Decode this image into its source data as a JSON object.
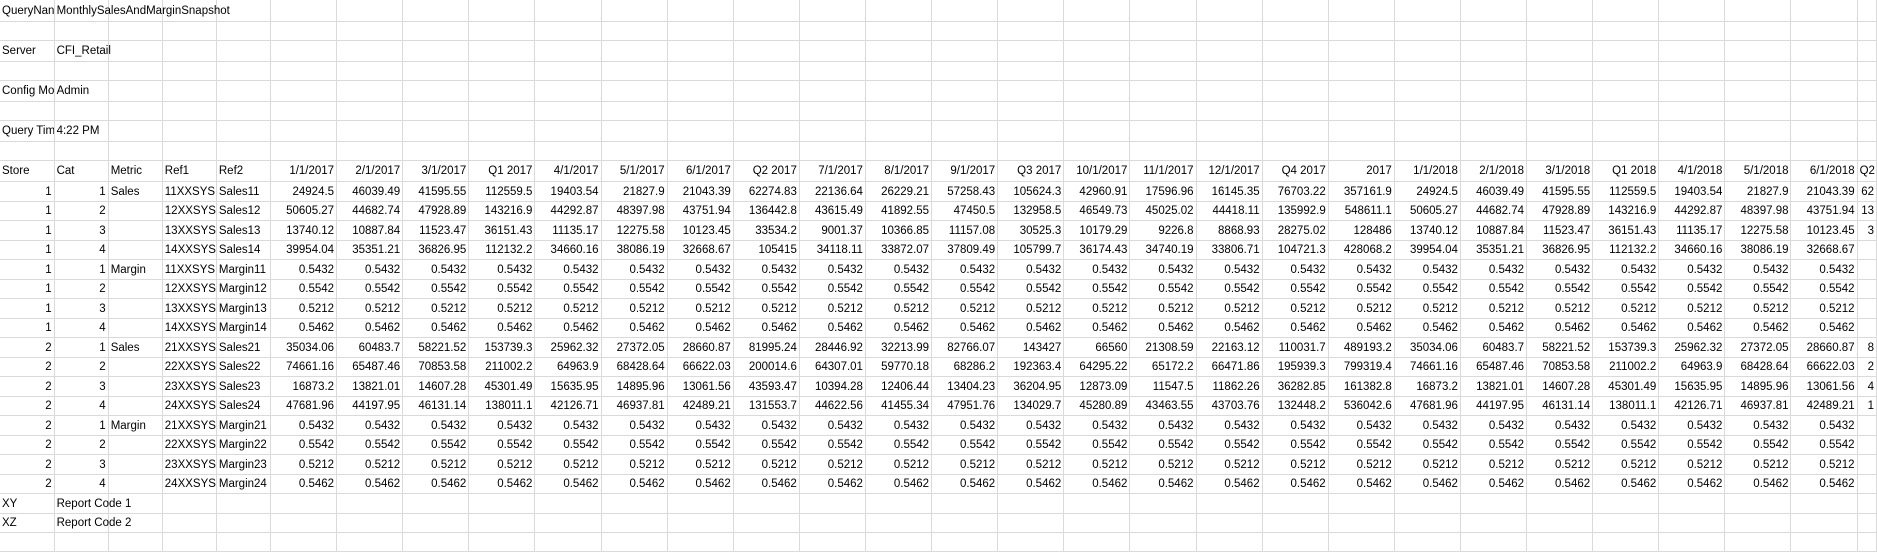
{
  "header_params": [
    {
      "key": "QueryNan",
      "value": "MonthlySalesAndMarginSnapshot"
    },
    {
      "key": "Server",
      "value": "CFI_Retail"
    },
    {
      "key": "Config Mo",
      "value": "Admin"
    },
    {
      "key": "Query Tim",
      "value": "4:22 PM"
    }
  ],
  "table": {
    "columns": [
      "Store",
      "Cat",
      "Metric",
      "Ref1",
      "Ref2",
      "1/1/2017",
      "2/1/2017",
      "3/1/2017",
      "Q1 2017",
      "4/1/2017",
      "5/1/2017",
      "6/1/2017",
      "Q2 2017",
      "7/1/2017",
      "8/1/2017",
      "9/1/2017",
      "Q3 2017",
      "10/1/2017",
      "11/1/2017",
      "12/1/2017",
      "Q4 2017",
      "2017",
      "1/1/2018",
      "2/1/2018",
      "3/1/2018",
      "Q1 2018",
      "4/1/2018",
      "5/1/2018",
      "6/1/2018",
      "Q2"
    ],
    "rows": [
      [
        "1",
        "1",
        "Sales",
        "11XXSYS",
        "Sales11",
        "24924.5",
        "46039.49",
        "41595.55",
        "112559.5",
        "19403.54",
        "21827.9",
        "21043.39",
        "62274.83",
        "22136.64",
        "26229.21",
        "57258.43",
        "105624.3",
        "42960.91",
        "17596.96",
        "16145.35",
        "76703.22",
        "357161.9",
        "24924.5",
        "46039.49",
        "41595.55",
        "112559.5",
        "19403.54",
        "21827.9",
        "21043.39",
        "62"
      ],
      [
        "1",
        "2",
        "",
        "12XXSYS",
        "Sales12",
        "50605.27",
        "44682.74",
        "47928.89",
        "143216.9",
        "44292.87",
        "48397.98",
        "43751.94",
        "136442.8",
        "43615.49",
        "41892.55",
        "47450.5",
        "132958.5",
        "46549.73",
        "45025.02",
        "44418.11",
        "135992.9",
        "548611.1",
        "50605.27",
        "44682.74",
        "47928.89",
        "143216.9",
        "44292.87",
        "48397.98",
        "43751.94",
        "13"
      ],
      [
        "1",
        "3",
        "",
        "13XXSYS",
        "Sales13",
        "13740.12",
        "10887.84",
        "11523.47",
        "36151.43",
        "11135.17",
        "12275.58",
        "10123.45",
        "33534.2",
        "9001.37",
        "10366.85",
        "11157.08",
        "30525.3",
        "10179.29",
        "9226.8",
        "8868.93",
        "28275.02",
        "128486",
        "13740.12",
        "10887.84",
        "11523.47",
        "36151.43",
        "11135.17",
        "12275.58",
        "10123.45",
        "3"
      ],
      [
        "1",
        "4",
        "",
        "14XXSYS",
        "Sales14",
        "39954.04",
        "35351.21",
        "36826.95",
        "112132.2",
        "34660.16",
        "38086.19",
        "32668.67",
        "105415",
        "34118.11",
        "33872.07",
        "37809.49",
        "105799.7",
        "36174.43",
        "34740.19",
        "33806.71",
        "104721.3",
        "428068.2",
        "39954.04",
        "35351.21",
        "36826.95",
        "112132.2",
        "34660.16",
        "38086.19",
        "32668.67",
        ""
      ],
      [
        "1",
        "1",
        "Margin",
        "11XXSYS",
        "Margin11",
        "0.5432",
        "0.5432",
        "0.5432",
        "0.5432",
        "0.5432",
        "0.5432",
        "0.5432",
        "0.5432",
        "0.5432",
        "0.5432",
        "0.5432",
        "0.5432",
        "0.5432",
        "0.5432",
        "0.5432",
        "0.5432",
        "0.5432",
        "0.5432",
        "0.5432",
        "0.5432",
        "0.5432",
        "0.5432",
        "0.5432",
        "0.5432",
        ""
      ],
      [
        "1",
        "2",
        "",
        "12XXSYS",
        "Margin12",
        "0.5542",
        "0.5542",
        "0.5542",
        "0.5542",
        "0.5542",
        "0.5542",
        "0.5542",
        "0.5542",
        "0.5542",
        "0.5542",
        "0.5542",
        "0.5542",
        "0.5542",
        "0.5542",
        "0.5542",
        "0.5542",
        "0.5542",
        "0.5542",
        "0.5542",
        "0.5542",
        "0.5542",
        "0.5542",
        "0.5542",
        "0.5542",
        ""
      ],
      [
        "1",
        "3",
        "",
        "13XXSYS",
        "Margin13",
        "0.5212",
        "0.5212",
        "0.5212",
        "0.5212",
        "0.5212",
        "0.5212",
        "0.5212",
        "0.5212",
        "0.5212",
        "0.5212",
        "0.5212",
        "0.5212",
        "0.5212",
        "0.5212",
        "0.5212",
        "0.5212",
        "0.5212",
        "0.5212",
        "0.5212",
        "0.5212",
        "0.5212",
        "0.5212",
        "0.5212",
        "0.5212",
        ""
      ],
      [
        "1",
        "4",
        "",
        "14XXSYS",
        "Margin14",
        "0.5462",
        "0.5462",
        "0.5462",
        "0.5462",
        "0.5462",
        "0.5462",
        "0.5462",
        "0.5462",
        "0.5462",
        "0.5462",
        "0.5462",
        "0.5462",
        "0.5462",
        "0.5462",
        "0.5462",
        "0.5462",
        "0.5462",
        "0.5462",
        "0.5462",
        "0.5462",
        "0.5462",
        "0.5462",
        "0.5462",
        "0.5462",
        ""
      ],
      [
        "2",
        "1",
        "Sales",
        "21XXSYS",
        "Sales21",
        "35034.06",
        "60483.7",
        "58221.52",
        "153739.3",
        "25962.32",
        "27372.05",
        "28660.87",
        "81995.24",
        "28446.92",
        "32213.99",
        "82766.07",
        "143427",
        "66560",
        "21308.59",
        "22163.12",
        "110031.7",
        "489193.2",
        "35034.06",
        "60483.7",
        "58221.52",
        "153739.3",
        "25962.32",
        "27372.05",
        "28660.87",
        "8"
      ],
      [
        "2",
        "2",
        "",
        "22XXSYS",
        "Sales22",
        "74661.16",
        "65487.46",
        "70853.58",
        "211002.2",
        "64963.9",
        "68428.64",
        "66622.03",
        "200014.6",
        "64307.01",
        "59770.18",
        "68286.2",
        "192363.4",
        "64295.22",
        "65172.2",
        "66471.86",
        "195939.3",
        "799319.4",
        "74661.16",
        "65487.46",
        "70853.58",
        "211002.2",
        "64963.9",
        "68428.64",
        "66622.03",
        "2"
      ],
      [
        "2",
        "3",
        "",
        "23XXSYS",
        "Sales23",
        "16873.2",
        "13821.01",
        "14607.28",
        "45301.49",
        "15635.95",
        "14895.96",
        "13061.56",
        "43593.47",
        "10394.28",
        "12406.44",
        "13404.23",
        "36204.95",
        "12873.09",
        "11547.5",
        "11862.26",
        "36282.85",
        "161382.8",
        "16873.2",
        "13821.01",
        "14607.28",
        "45301.49",
        "15635.95",
        "14895.96",
        "13061.56",
        "4"
      ],
      [
        "2",
        "4",
        "",
        "24XXSYS",
        "Sales24",
        "47681.96",
        "44197.95",
        "46131.14",
        "138011.1",
        "42126.71",
        "46937.81",
        "42489.21",
        "131553.7",
        "44622.56",
        "41455.34",
        "47951.76",
        "134029.7",
        "45280.89",
        "43463.55",
        "43703.76",
        "132448.2",
        "536042.6",
        "47681.96",
        "44197.95",
        "46131.14",
        "138011.1",
        "42126.71",
        "46937.81",
        "42489.21",
        "1"
      ],
      [
        "2",
        "1",
        "Margin",
        "21XXSYS",
        "Margin21",
        "0.5432",
        "0.5432",
        "0.5432",
        "0.5432",
        "0.5432",
        "0.5432",
        "0.5432",
        "0.5432",
        "0.5432",
        "0.5432",
        "0.5432",
        "0.5432",
        "0.5432",
        "0.5432",
        "0.5432",
        "0.5432",
        "0.5432",
        "0.5432",
        "0.5432",
        "0.5432",
        "0.5432",
        "0.5432",
        "0.5432",
        "0.5432",
        ""
      ],
      [
        "2",
        "2",
        "",
        "22XXSYS",
        "Margin22",
        "0.5542",
        "0.5542",
        "0.5542",
        "0.5542",
        "0.5542",
        "0.5542",
        "0.5542",
        "0.5542",
        "0.5542",
        "0.5542",
        "0.5542",
        "0.5542",
        "0.5542",
        "0.5542",
        "0.5542",
        "0.5542",
        "0.5542",
        "0.5542",
        "0.5542",
        "0.5542",
        "0.5542",
        "0.5542",
        "0.5542",
        "0.5542",
        ""
      ],
      [
        "2",
        "3",
        "",
        "23XXSYS",
        "Margin23",
        "0.5212",
        "0.5212",
        "0.5212",
        "0.5212",
        "0.5212",
        "0.5212",
        "0.5212",
        "0.5212",
        "0.5212",
        "0.5212",
        "0.5212",
        "0.5212",
        "0.5212",
        "0.5212",
        "0.5212",
        "0.5212",
        "0.5212",
        "0.5212",
        "0.5212",
        "0.5212",
        "0.5212",
        "0.5212",
        "0.5212",
        "0.5212",
        ""
      ],
      [
        "2",
        "4",
        "",
        "24XXSYS",
        "Margin24",
        "0.5462",
        "0.5462",
        "0.5462",
        "0.5462",
        "0.5462",
        "0.5462",
        "0.5462",
        "0.5462",
        "0.5462",
        "0.5462",
        "0.5462",
        "0.5462",
        "0.5462",
        "0.5462",
        "0.5462",
        "0.5462",
        "0.5462",
        "0.5462",
        "0.5462",
        "0.5462",
        "0.5462",
        "0.5462",
        "0.5462",
        "0.5462",
        ""
      ]
    ]
  },
  "footer_codes": [
    {
      "code": "XY",
      "label": "Report Code 1"
    },
    {
      "code": "XZ",
      "label": "Report Code 2"
    }
  ]
}
